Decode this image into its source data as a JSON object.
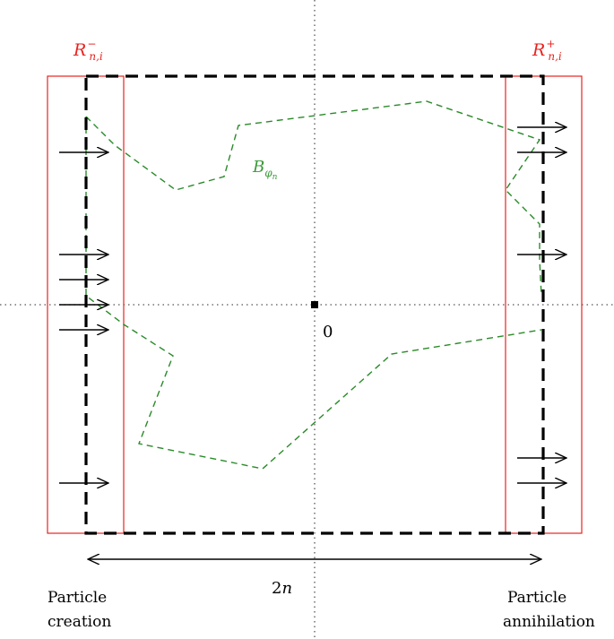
{
  "labels": {
    "left_region": {
      "main": "R",
      "sup": "−",
      "sub": "n,i"
    },
    "right_region": {
      "main": "R",
      "sup": "+",
      "sub": "n,i"
    },
    "path": {
      "main": "B",
      "sub": "φ"
    },
    "path_sub2": "n",
    "origin": "0",
    "width": {
      "num": "2",
      "var": "n"
    },
    "left_caption": [
      "Particle",
      "creation"
    ],
    "right_caption": [
      "Particle",
      "annihilation"
    ]
  },
  "colors": {
    "region": "#e8231f",
    "path": "#2a8a2a",
    "box": "#000000",
    "axes": "#555555"
  }
}
